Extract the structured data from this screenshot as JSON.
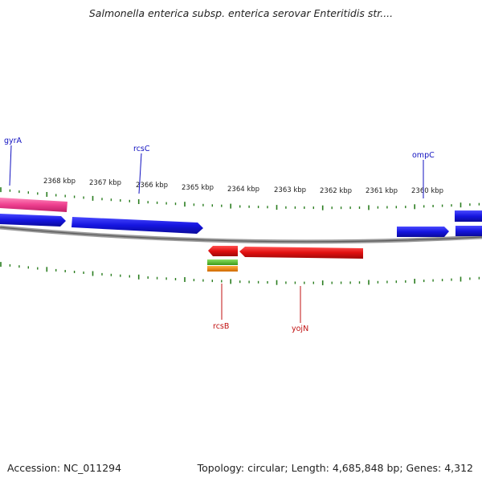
{
  "title": "Salmonella enterica subsp. enterica serovar Enteritidis str....",
  "footer": {
    "accession": "Accession: NC_011294",
    "summary": "Topology: circular; Length: 4,685,848 bp; Genes: 4,312"
  },
  "colors": {
    "backbone": "#8a8a8a",
    "tick": "#2a7d1f",
    "forward_gene": "#1515e0",
    "reverse_gene": "#e01010",
    "pink_feature": "#ee3f8f",
    "green_feature": "#55c02a",
    "orange_feature": "#f08a10",
    "forward_label": "#1010c0",
    "reverse_label": "#c01010"
  },
  "scale_labels": [
    "2368 kbp",
    "2367 kbp",
    "2366 kbp",
    "2365 kbp",
    "2364 kbp",
    "2363 kbp",
    "2362 kbp",
    "2361 kbp",
    "2360 kbp"
  ],
  "genes": {
    "forward": [
      "gyrA",
      "rcsC",
      "ompC"
    ],
    "reverse": [
      "rcsB",
      "yojN"
    ]
  }
}
